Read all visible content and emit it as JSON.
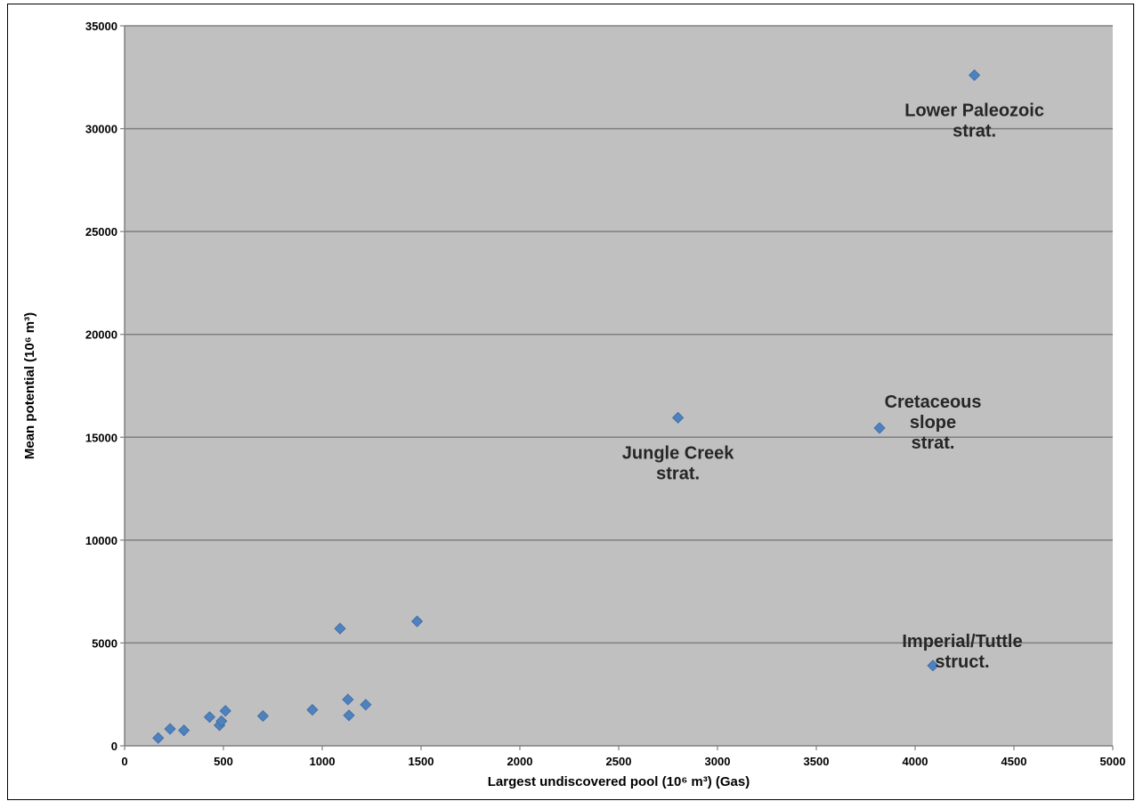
{
  "chart_data": {
    "type": "scatter",
    "title": "",
    "xlabel": "Largest undiscovered pool (10⁶ m³) (Gas)",
    "ylabel": "Mean potential (10⁶ m³)",
    "xlim": [
      0,
      5000
    ],
    "ylim": [
      0,
      35000
    ],
    "x_ticks": [
      "0",
      "500",
      "1000",
      "1500",
      "2000",
      "2500",
      "3000",
      "3500",
      "4000",
      "4500",
      "5000"
    ],
    "y_ticks": [
      "0",
      "5000",
      "10000",
      "15000",
      "20000",
      "25000",
      "30000",
      "35000"
    ],
    "grid": "horizontal",
    "legend": "none",
    "colors": {
      "plot_background": "#c0c0c0",
      "marker": "#4f81bd",
      "gridline": "#7f7f7f"
    },
    "points": [
      {
        "x": 170,
        "y": 380
      },
      {
        "x": 230,
        "y": 820
      },
      {
        "x": 300,
        "y": 750
      },
      {
        "x": 430,
        "y": 1400
      },
      {
        "x": 480,
        "y": 1000
      },
      {
        "x": 490,
        "y": 1200
      },
      {
        "x": 510,
        "y": 1700
      },
      {
        "x": 700,
        "y": 1450
      },
      {
        "x": 950,
        "y": 1750
      },
      {
        "x": 1090,
        "y": 5700
      },
      {
        "x": 1130,
        "y": 2250
      },
      {
        "x": 1135,
        "y": 1480
      },
      {
        "x": 1220,
        "y": 2000
      },
      {
        "x": 1480,
        "y": 6050
      },
      {
        "x": 2800,
        "y": 15950
      },
      {
        "x": 3820,
        "y": 15450
      },
      {
        "x": 4090,
        "y": 3900
      },
      {
        "x": 4300,
        "y": 32600
      }
    ],
    "annotations": [
      {
        "lines": [
          "Lower Paleozoic",
          "strat."
        ],
        "x": 4300,
        "y": 32600,
        "placement": "below"
      },
      {
        "lines": [
          "Jungle Creek",
          "strat."
        ],
        "x": 2800,
        "y": 15950,
        "placement": "below"
      },
      {
        "lines": [
          "Cretaceous",
          "slope",
          "strat."
        ],
        "x": 3820,
        "y": 15450,
        "placement": "right"
      },
      {
        "lines": [
          "Imperial/Tuttle",
          "struct."
        ],
        "x": 4090,
        "y": 3900,
        "placement": "above-right"
      }
    ]
  }
}
